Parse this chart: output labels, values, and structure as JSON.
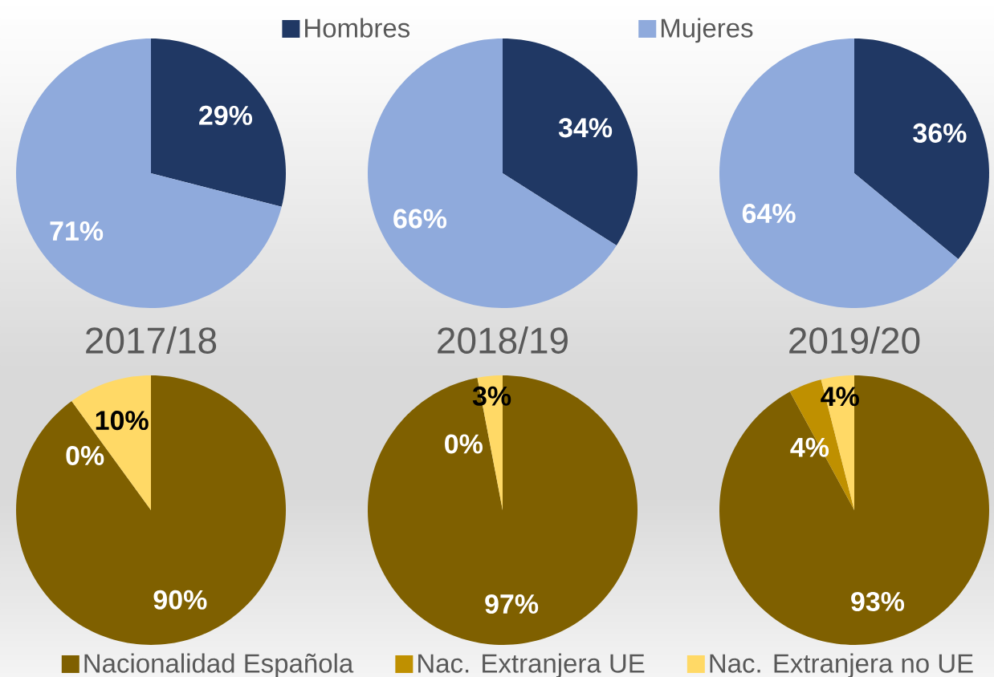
{
  "chart_data": [
    {
      "type": "pie",
      "categories": [
        "Hombres",
        "Mujeres"
      ],
      "values": [
        29,
        71
      ],
      "colors": [
        "#203864",
        "#8faadc"
      ],
      "value_labels": [
        "29%",
        "71%"
      ],
      "legend": "top"
    },
    {
      "type": "pie",
      "categories": [
        null,
        null
      ],
      "values": [
        34,
        66
      ],
      "colors": [
        "#203864",
        "#8faadc"
      ],
      "value_labels": [
        "34%",
        "66%"
      ]
    },
    {
      "type": "pie",
      "categories": [
        null,
        null
      ],
      "values": [
        36,
        64
      ],
      "colors": [
        "#203864",
        "#8faadc"
      ],
      "value_labels": [
        "36%",
        "64%"
      ]
    },
    {
      "type": "pie",
      "title": "2017/18",
      "categories": [
        "Nacionalidad Española",
        "Nac. Extranjera UE",
        "Nac. Extranjera no UE"
      ],
      "values": [
        90,
        0,
        10
      ],
      "colors": [
        "#7f6000",
        "#bf9000",
        "#ffd966"
      ],
      "value_labels": [
        "90%",
        "0%",
        "10%"
      ],
      "legend": "bottom"
    },
    {
      "type": "pie",
      "title": "2018/19",
      "categories": [
        null,
        null,
        null
      ],
      "values": [
        97,
        0,
        3
      ],
      "colors": [
        "#7f6000",
        "#bf9000",
        "#ffd966"
      ],
      "value_labels": [
        "97%",
        "0%",
        "3%"
      ]
    },
    {
      "type": "pie",
      "title": "2019/20",
      "categories": [
        null,
        null,
        null
      ],
      "values": [
        93,
        4,
        4
      ],
      "colors": [
        "#7f6000",
        "#bf9000",
        "#ffd966"
      ],
      "value_labels": [
        "93%",
        "4%",
        "4%"
      ]
    }
  ]
}
